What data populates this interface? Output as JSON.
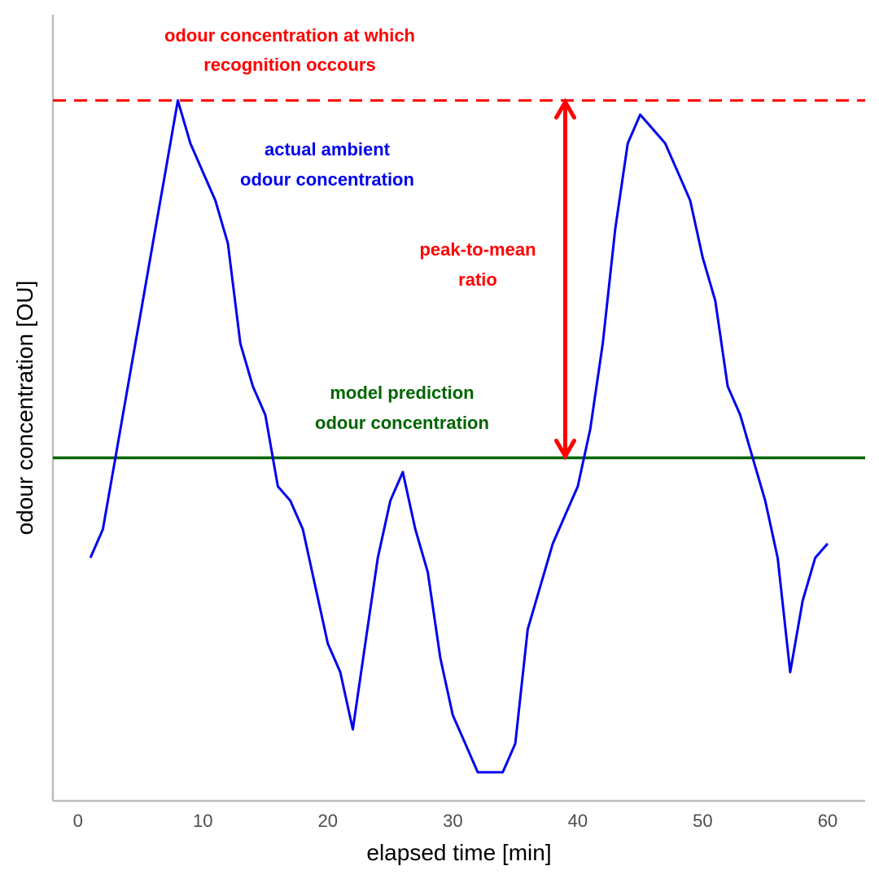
{
  "chart_data": {
    "type": "line",
    "title": "",
    "xlabel": "elapsed time [min]",
    "ylabel": "odour concentration [OU]",
    "xlim": [
      -2,
      63
    ],
    "ylim": [
      0,
      55
    ],
    "x_ticks": [
      0,
      10,
      20,
      30,
      40,
      50,
      60
    ],
    "x_tick_labels": [
      "0",
      "10",
      "20",
      "30",
      "40",
      "50",
      "60"
    ],
    "y_ticks_shown": false,
    "grid": false,
    "series": [
      {
        "name": "actual ambient odour concentration",
        "color": "#0000ee",
        "x": [
          1,
          2,
          3,
          4,
          5,
          6,
          7,
          8,
          9,
          10,
          11,
          12,
          13,
          14,
          15,
          16,
          17,
          18,
          19,
          20,
          21,
          22,
          23,
          24,
          25,
          26,
          27,
          28,
          29,
          30,
          31,
          32,
          33,
          34,
          35,
          36,
          37,
          38,
          39,
          40,
          41,
          42,
          43,
          44,
          45,
          46,
          47,
          48,
          49,
          50,
          51,
          52,
          53,
          54,
          55,
          56,
          57,
          58,
          59,
          60
        ],
        "y": [
          17,
          19,
          24,
          29,
          34,
          39,
          44,
          49,
          46,
          44,
          42,
          39,
          32,
          29,
          27,
          22,
          21,
          19,
          15,
          11,
          9,
          5,
          11,
          17,
          21,
          23,
          19,
          16,
          10,
          6,
          4,
          2,
          2,
          2,
          4,
          12,
          15,
          18,
          20,
          22,
          26,
          32,
          40,
          46,
          48,
          47,
          46,
          44,
          42,
          38,
          35,
          29,
          27,
          24,
          21,
          17,
          9,
          14,
          17,
          18
        ]
      }
    ],
    "reference_lines": [
      {
        "label": "odour concentration at which recognition occours",
        "y": 49,
        "style": "dashed",
        "color": "#ff0000"
      },
      {
        "label": "model prediction odour concentration",
        "y": 24,
        "style": "solid",
        "color": "#006400"
      }
    ],
    "arrow": {
      "label": "peak-to-mean ratio",
      "x": 39,
      "y_from": 24,
      "y_to": 49,
      "color": "#ff0000"
    },
    "annotations": [
      {
        "lines": [
          "odour concentration at which",
          "recognition occours"
        ],
        "color": "#ff0000"
      },
      {
        "lines": [
          "actual ambient",
          "odour concentration"
        ],
        "color": "#0000ee"
      },
      {
        "lines": [
          "peak-to-mean",
          "ratio"
        ],
        "color": "#ff0000"
      },
      {
        "lines": [
          "model prediction",
          "odour concentration"
        ],
        "color": "#006400"
      }
    ]
  }
}
